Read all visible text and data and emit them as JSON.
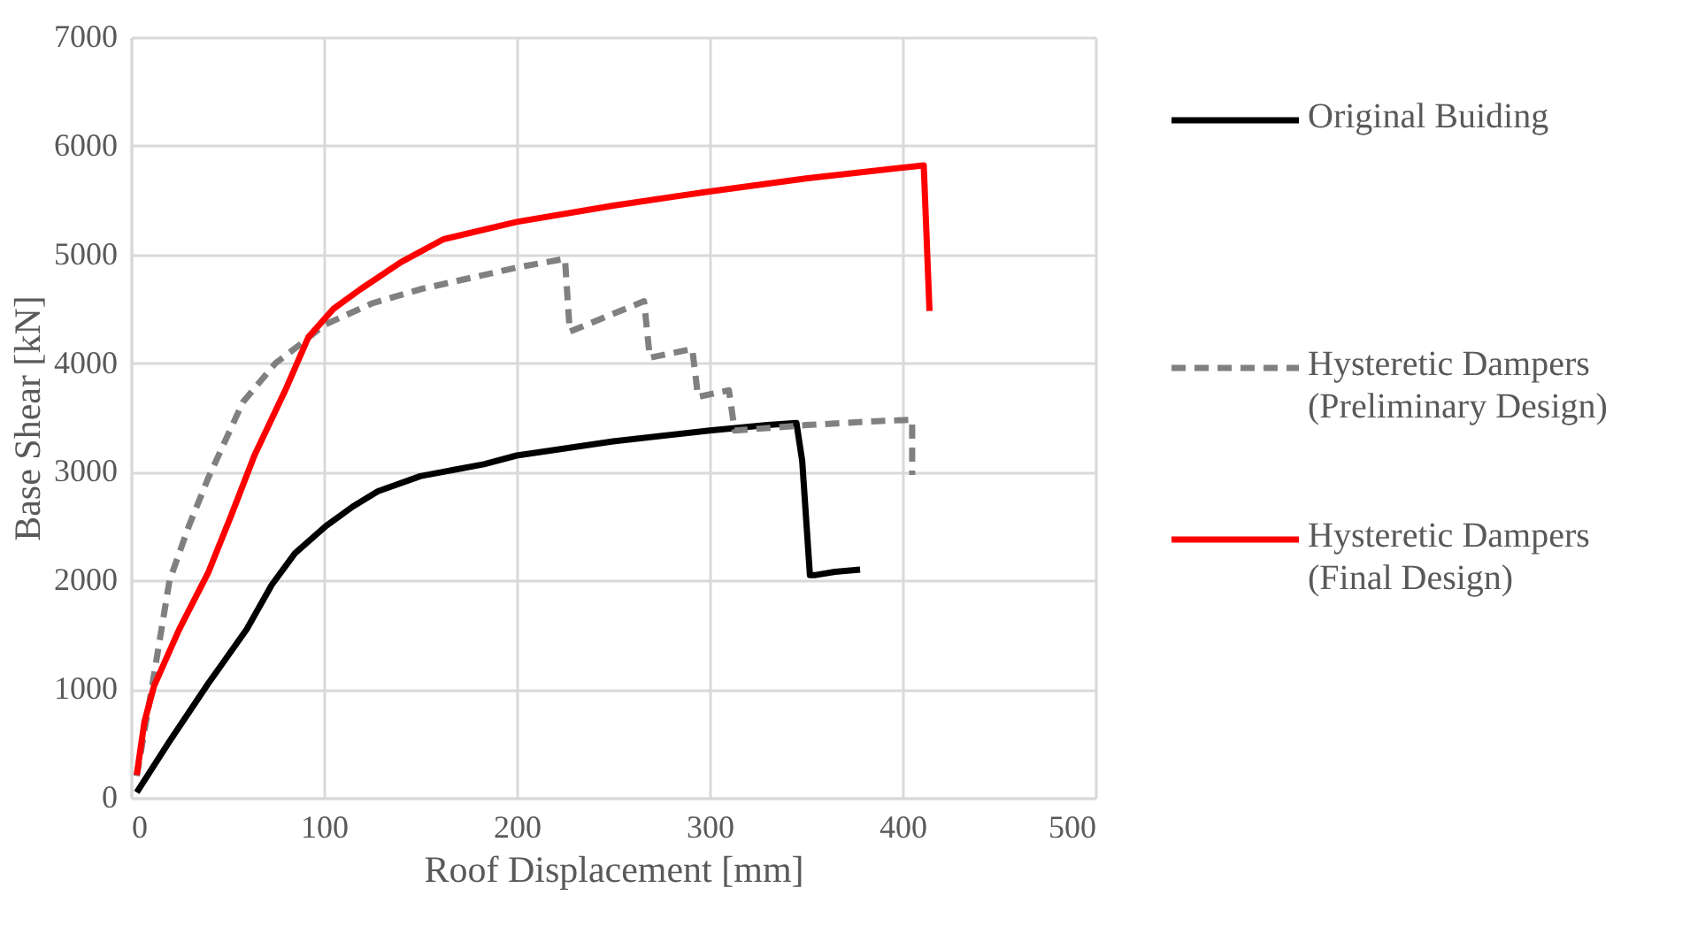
{
  "chart_data": {
    "type": "line",
    "xlabel": "Roof Displacement [mm]",
    "ylabel": "Base Shear [kN]",
    "xlim": [
      0,
      500
    ],
    "ylim": [
      0,
      7000
    ],
    "xticks": [
      0,
      100,
      200,
      300,
      400,
      500
    ],
    "yticks": [
      0,
      1000,
      2000,
      3000,
      4000,
      5000,
      6000,
      7000
    ],
    "grid": true,
    "legend": "right",
    "marker": "none",
    "series": [
      {
        "name": "Original Buiding",
        "color": "#000000",
        "line_style": "solid",
        "x": [
          3,
          20,
          40,
          60,
          73,
          85,
          101,
          115,
          128,
          150,
          183,
          200,
          250,
          300,
          330,
          345,
          348,
          352,
          355,
          365,
          378
        ],
        "values": [
          50,
          520,
          1050,
          1550,
          1960,
          2250,
          2500,
          2680,
          2820,
          2960,
          3070,
          3150,
          3280,
          3380,
          3430,
          3450,
          3100,
          2050,
          2050,
          2080,
          2100
        ]
      },
      {
        "name": "Hysteretic Dampers\n(Preliminary Design)",
        "color": "#808080",
        "line_style": "dashed",
        "x": [
          3,
          11,
          20,
          30,
          40,
          58,
          75,
          89,
          100,
          125,
          150,
          200,
          225,
          227.5,
          266,
          269,
          291,
          294,
          310,
          313,
          350,
          380,
          405,
          405
        ],
        "values": [
          200,
          1030,
          2000,
          2500,
          2940,
          3640,
          4000,
          4190,
          4350,
          4550,
          4680,
          4880,
          4960,
          4290,
          4570,
          4050,
          4130,
          3690,
          3750,
          3380,
          3430,
          3460,
          3480,
          2970
        ]
      },
      {
        "name": "Hysteretic Dampers\n(Final Design)",
        "color": "#ff0000",
        "line_style": "solid",
        "x": [
          3,
          7,
          12,
          25,
          40,
          52,
          64,
          80,
          92,
          105,
          119,
          140,
          162,
          200,
          250,
          300,
          350,
          411,
          414
        ],
        "values": [
          210,
          700,
          1030,
          1550,
          2070,
          2600,
          3150,
          3750,
          4240,
          4500,
          4680,
          4930,
          5140,
          5300,
          5450,
          5580,
          5700,
          5820,
          4480
        ]
      }
    ]
  }
}
